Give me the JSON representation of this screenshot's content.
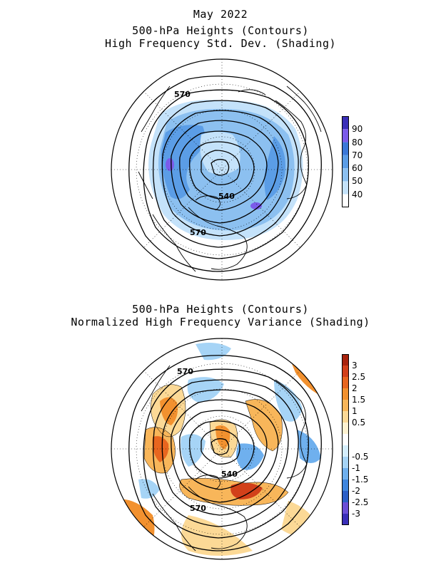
{
  "panel1": {
    "title_lines": [
      "May 2022",
      "500-hPa Heights (Contours)",
      "High Frequency Std. Dev. (Shading)"
    ],
    "contour_labels": [
      "570",
      "540",
      "570"
    ],
    "colorbar": {
      "ticks": [
        "90",
        "80",
        "70",
        "60",
        "50",
        "40"
      ],
      "colors": [
        "#3a2fb8",
        "#7b5bea",
        "#3b78d8",
        "#5b9de6",
        "#8cc0f0",
        "#c4e2fa",
        "#ffffff"
      ]
    }
  },
  "panel2": {
    "title_lines": [
      "500-hPa Heights (Contours)",
      "Normalized High Frequency Variance (Shading)"
    ],
    "contour_labels": [
      "570",
      "540",
      "570"
    ],
    "colorbar": {
      "ticks": [
        "3",
        "2.5",
        "2",
        "1.5",
        "1",
        "0.5",
        "-0.5",
        "-1",
        "-1.5",
        "-2",
        "-2.5",
        "-3"
      ],
      "colors": [
        "#a8230d",
        "#d2401a",
        "#e8661f",
        "#f2912f",
        "#f8b65a",
        "#fcd996",
        "#fff2d0",
        "#ffffff",
        "#d5eefc",
        "#a6d4f6",
        "#6fb0ee",
        "#3f86de",
        "#2b5fc7",
        "#6a4fd6",
        "#3a2fb8"
      ]
    }
  }
}
